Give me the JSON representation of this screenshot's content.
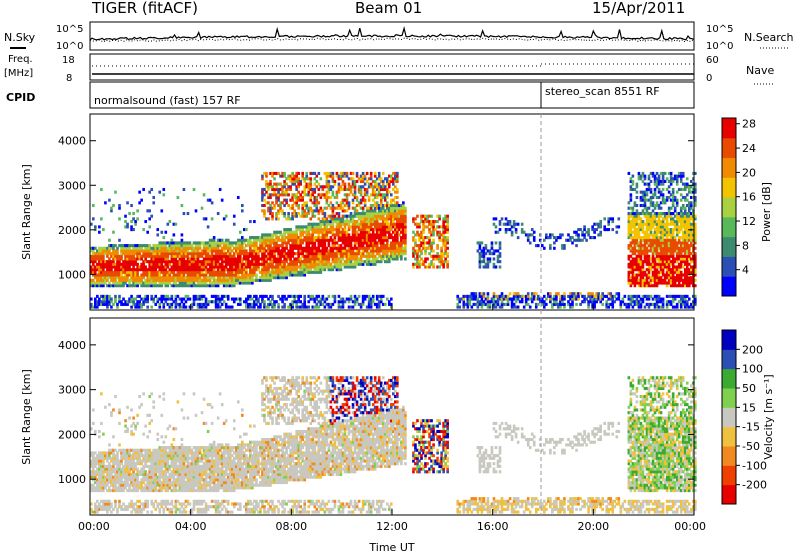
{
  "header": {
    "radar": "TIGER (fitACF)",
    "beam": "Beam 01",
    "date": "15/Apr/2011"
  },
  "noise_panel": {
    "left_label": "N.Sky",
    "right_label": "N.Search",
    "tick_top_left": "10^5",
    "tick_bottom_left": "10^0",
    "tick_top_right": "10^5",
    "tick_bottom_right": "10^0"
  },
  "freq_panel": {
    "left_label_1": "Freq.",
    "left_label_2": "[MHz]",
    "right_label": "Nave",
    "tick_top_left": "18",
    "tick_bottom_left": "8",
    "tick_top_right": "60",
    "tick_bottom_right": "0"
  },
  "cpid_panel": {
    "label": "CPID",
    "mode_1": "normalsound (fast) 157 RF",
    "mode_2": "stereo_scan 8551 RF"
  },
  "colors": {
    "power_scale": [
      "#0000ff",
      "#2c4fb5",
      "#3c8a70",
      "#58b85a",
      "#a8d040",
      "#f2c400",
      "#f08a00",
      "#e84a00",
      "#e80000"
    ],
    "velocity_scale": [
      "#e80000",
      "#f04000",
      "#f08a20",
      "#f0c040",
      "#c8c8c0",
      "#80d050",
      "#3caa30",
      "#2c4fb5",
      "#0000c0"
    ]
  },
  "chart_data": [
    {
      "type": "heatmap",
      "name": "power",
      "ylabel": "Slant Range [km]",
      "yticks": [
        "1000",
        "2000",
        "3000",
        "4000"
      ],
      "ylim": [
        200,
        4600
      ],
      "xlim": [
        "00:00",
        "24:00"
      ],
      "colorbar_label": "Power [dB]",
      "colorbar_ticks": [
        "4",
        "8",
        "12",
        "16",
        "20",
        "24",
        "28"
      ],
      "features": [
        {
          "t0": 0.0,
          "t1": 5.5,
          "r0": 700,
          "r1": 1700,
          "level": "strong"
        },
        {
          "t0": 5.5,
          "t1": 12.5,
          "r0": 600,
          "r1": 2600,
          "level": "strong"
        },
        {
          "t0": 7.0,
          "t1": 12.0,
          "r0": 2200,
          "r1": 3300,
          "level": "medium"
        },
        {
          "t0": 13.0,
          "t1": 14.0,
          "r0": 1200,
          "r1": 2300,
          "level": "medium"
        },
        {
          "t0": 16.0,
          "t1": 21.0,
          "r0": 1700,
          "r1": 2300,
          "level": "weak"
        },
        {
          "t0": 21.5,
          "t1": 24.0,
          "r0": 700,
          "r1": 3300,
          "level": "strong"
        }
      ]
    },
    {
      "type": "heatmap",
      "name": "velocity",
      "ylabel": "Slant Range [km]",
      "yticks": [
        "1000",
        "2000",
        "3000",
        "4000"
      ],
      "ylim": [
        200,
        4600
      ],
      "xlabel": "Time UT",
      "xticks": [
        "00:00",
        "04:00",
        "08:00",
        "12:00",
        "16:00",
        "20:00",
        "00:00"
      ],
      "colorbar_label": "Velocity [m s⁻¹]",
      "colorbar_ticks": [
        "-200",
        "-100",
        "-50",
        "-15",
        "15",
        "50",
        "100",
        "200"
      ]
    }
  ]
}
